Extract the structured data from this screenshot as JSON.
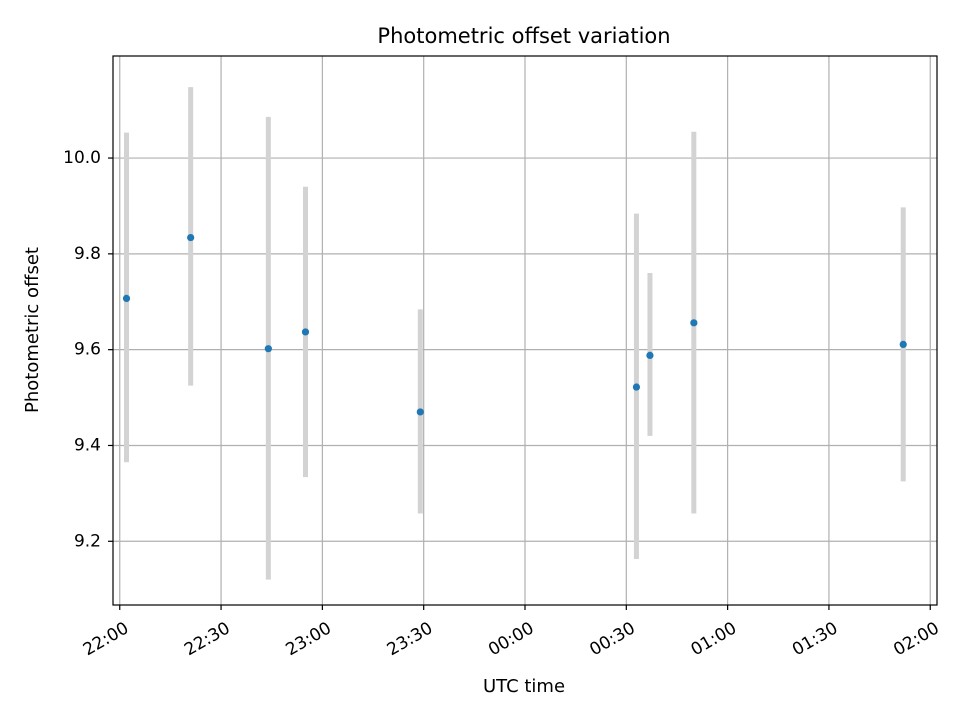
{
  "chart_data": {
    "type": "scatter",
    "title": "Photometric offset variation",
    "xlabel": "UTC time",
    "ylabel": "Photometric offset",
    "grid": true,
    "xlim": [
      "21:58",
      "02:02"
    ],
    "ylim": [
      9.067,
      10.213
    ],
    "x_ticks": [
      "22:00",
      "22:30",
      "23:00",
      "23:30",
      "00:00",
      "00:30",
      "01:00",
      "01:30",
      "02:00"
    ],
    "y_ticks": [
      "9.2",
      "9.4",
      "9.6",
      "9.8",
      "10.0"
    ],
    "point_color": "#1f77b4",
    "errorbar_color": "#d3d3d3",
    "series": [
      {
        "points": [
          {
            "x": "22:02",
            "y": 9.707,
            "err_low": 9.365,
            "err_high": 10.053
          },
          {
            "x": "22:21",
            "y": 9.834,
            "err_low": 9.525,
            "err_high": 10.148
          },
          {
            "x": "22:44",
            "y": 9.602,
            "err_low": 9.12,
            "err_high": 10.086
          },
          {
            "x": "22:55",
            "y": 9.637,
            "err_low": 9.334,
            "err_high": 9.94
          },
          {
            "x": "23:29",
            "y": 9.47,
            "err_low": 9.258,
            "err_high": 9.684
          },
          {
            "x": "00:33",
            "y": 9.522,
            "err_low": 9.163,
            "err_high": 9.884
          },
          {
            "x": "00:37",
            "y": 9.588,
            "err_low": 9.42,
            "err_high": 9.76
          },
          {
            "x": "00:50",
            "y": 9.656,
            "err_low": 9.258,
            "err_high": 10.055
          },
          {
            "x": "01:52",
            "y": 9.611,
            "err_low": 9.325,
            "err_high": 9.897
          }
        ]
      }
    ]
  }
}
